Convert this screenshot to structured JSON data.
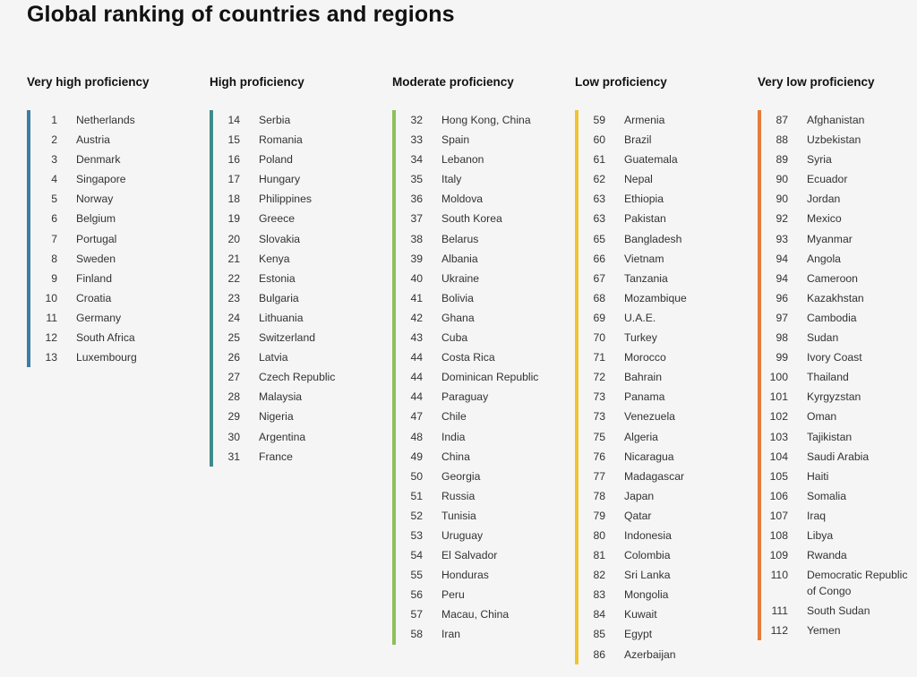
{
  "title": "Global ranking of countries and regions",
  "colors": {
    "very_high": "#3d7ea6",
    "high": "#3f8a8c",
    "moderate": "#8ebf5a",
    "low": "#f1c232",
    "very_low": "#e87b3a"
  },
  "columns": [
    {
      "heading": "Very high proficiency",
      "color_key": "very_high",
      "entries": [
        {
          "rank": "1",
          "name": "Netherlands"
        },
        {
          "rank": "2",
          "name": "Austria"
        },
        {
          "rank": "3",
          "name": "Denmark"
        },
        {
          "rank": "4",
          "name": "Singapore"
        },
        {
          "rank": "5",
          "name": "Norway"
        },
        {
          "rank": "6",
          "name": "Belgium"
        },
        {
          "rank": "7",
          "name": "Portugal"
        },
        {
          "rank": "8",
          "name": "Sweden"
        },
        {
          "rank": "9",
          "name": "Finland"
        },
        {
          "rank": "10",
          "name": "Croatia"
        },
        {
          "rank": "11",
          "name": "Germany"
        },
        {
          "rank": "12",
          "name": "South Africa"
        },
        {
          "rank": "13",
          "name": "Luxembourg"
        }
      ]
    },
    {
      "heading": "High proficiency",
      "color_key": "high",
      "entries": [
        {
          "rank": "14",
          "name": "Serbia"
        },
        {
          "rank": "15",
          "name": "Romania"
        },
        {
          "rank": "16",
          "name": "Poland"
        },
        {
          "rank": "17",
          "name": "Hungary"
        },
        {
          "rank": "18",
          "name": "Philippines"
        },
        {
          "rank": "19",
          "name": "Greece"
        },
        {
          "rank": "20",
          "name": "Slovakia"
        },
        {
          "rank": "21",
          "name": "Kenya"
        },
        {
          "rank": "22",
          "name": "Estonia"
        },
        {
          "rank": "23",
          "name": "Bulgaria"
        },
        {
          "rank": "24",
          "name": "Lithuania"
        },
        {
          "rank": "25",
          "name": "Switzerland"
        },
        {
          "rank": "26",
          "name": "Latvia"
        },
        {
          "rank": "27",
          "name": "Czech Republic"
        },
        {
          "rank": "28",
          "name": "Malaysia"
        },
        {
          "rank": "29",
          "name": "Nigeria"
        },
        {
          "rank": "30",
          "name": "Argentina"
        },
        {
          "rank": "31",
          "name": "France"
        }
      ]
    },
    {
      "heading": "Moderate proficiency",
      "color_key": "moderate",
      "entries": [
        {
          "rank": "32",
          "name": "Hong Kong, China"
        },
        {
          "rank": "33",
          "name": "Spain"
        },
        {
          "rank": "34",
          "name": "Lebanon"
        },
        {
          "rank": "35",
          "name": "Italy"
        },
        {
          "rank": "36",
          "name": "Moldova"
        },
        {
          "rank": "37",
          "name": "South Korea"
        },
        {
          "rank": "38",
          "name": "Belarus"
        },
        {
          "rank": "39",
          "name": "Albania"
        },
        {
          "rank": "40",
          "name": "Ukraine"
        },
        {
          "rank": "41",
          "name": "Bolivia"
        },
        {
          "rank": "42",
          "name": "Ghana"
        },
        {
          "rank": "43",
          "name": "Cuba"
        },
        {
          "rank": "44",
          "name": "Costa Rica"
        },
        {
          "rank": "44",
          "name": "Dominican Republic"
        },
        {
          "rank": "44",
          "name": "Paraguay"
        },
        {
          "rank": "47",
          "name": "Chile"
        },
        {
          "rank": "48",
          "name": "India"
        },
        {
          "rank": "49",
          "name": "China"
        },
        {
          "rank": "50",
          "name": "Georgia"
        },
        {
          "rank": "51",
          "name": "Russia"
        },
        {
          "rank": "52",
          "name": "Tunisia"
        },
        {
          "rank": "53",
          "name": "Uruguay"
        },
        {
          "rank": "54",
          "name": "El Salvador"
        },
        {
          "rank": "55",
          "name": "Honduras"
        },
        {
          "rank": "56",
          "name": "Peru"
        },
        {
          "rank": "57",
          "name": "Macau, China"
        },
        {
          "rank": "58",
          "name": "Iran"
        }
      ]
    },
    {
      "heading": "Low proficiency",
      "color_key": "low",
      "entries": [
        {
          "rank": "59",
          "name": "Armenia"
        },
        {
          "rank": "60",
          "name": "Brazil"
        },
        {
          "rank": "61",
          "name": "Guatemala"
        },
        {
          "rank": "62",
          "name": "Nepal"
        },
        {
          "rank": "63",
          "name": "Ethiopia"
        },
        {
          "rank": "63",
          "name": "Pakistan"
        },
        {
          "rank": "65",
          "name": "Bangladesh"
        },
        {
          "rank": "66",
          "name": "Vietnam"
        },
        {
          "rank": "67",
          "name": "Tanzania"
        },
        {
          "rank": "68",
          "name": "Mozambique"
        },
        {
          "rank": "69",
          "name": "U.A.E."
        },
        {
          "rank": "70",
          "name": "Turkey"
        },
        {
          "rank": "71",
          "name": "Morocco"
        },
        {
          "rank": "72",
          "name": "Bahrain"
        },
        {
          "rank": "73",
          "name": "Panama"
        },
        {
          "rank": "73",
          "name": "Venezuela"
        },
        {
          "rank": "75",
          "name": "Algeria"
        },
        {
          "rank": "76",
          "name": "Nicaragua"
        },
        {
          "rank": "77",
          "name": "Madagascar"
        },
        {
          "rank": "78",
          "name": "Japan"
        },
        {
          "rank": "79",
          "name": "Qatar"
        },
        {
          "rank": "80",
          "name": "Indonesia"
        },
        {
          "rank": "81",
          "name": "Colombia"
        },
        {
          "rank": "82",
          "name": "Sri Lanka"
        },
        {
          "rank": "83",
          "name": "Mongolia"
        },
        {
          "rank": "84",
          "name": "Kuwait"
        },
        {
          "rank": "85",
          "name": "Egypt"
        },
        {
          "rank": "86",
          "name": "Azerbaijan"
        }
      ]
    },
    {
      "heading": "Very low proficiency",
      "color_key": "very_low",
      "entries": [
        {
          "rank": "87",
          "name": "Afghanistan"
        },
        {
          "rank": "88",
          "name": "Uzbekistan"
        },
        {
          "rank": "89",
          "name": "Syria"
        },
        {
          "rank": "90",
          "name": "Ecuador"
        },
        {
          "rank": "90",
          "name": "Jordan"
        },
        {
          "rank": "92",
          "name": "Mexico"
        },
        {
          "rank": "93",
          "name": "Myanmar"
        },
        {
          "rank": "94",
          "name": "Angola"
        },
        {
          "rank": "94",
          "name": "Cameroon"
        },
        {
          "rank": "96",
          "name": "Kazakhstan"
        },
        {
          "rank": "97",
          "name": "Cambodia"
        },
        {
          "rank": "98",
          "name": "Sudan"
        },
        {
          "rank": "99",
          "name": "Ivory Coast"
        },
        {
          "rank": "100",
          "name": "Thailand"
        },
        {
          "rank": "101",
          "name": "Kyrgyzstan"
        },
        {
          "rank": "102",
          "name": "Oman"
        },
        {
          "rank": "103",
          "name": "Tajikistan"
        },
        {
          "rank": "104",
          "name": "Saudi Arabia"
        },
        {
          "rank": "105",
          "name": "Haiti"
        },
        {
          "rank": "106",
          "name": "Somalia"
        },
        {
          "rank": "107",
          "name": "Iraq"
        },
        {
          "rank": "108",
          "name": "Libya"
        },
        {
          "rank": "109",
          "name": "Rwanda"
        },
        {
          "rank": "110",
          "name": "Democratic Republic of Congo"
        },
        {
          "rank": "111",
          "name": "South Sudan"
        },
        {
          "rank": "112",
          "name": "Yemen"
        }
      ]
    }
  ]
}
